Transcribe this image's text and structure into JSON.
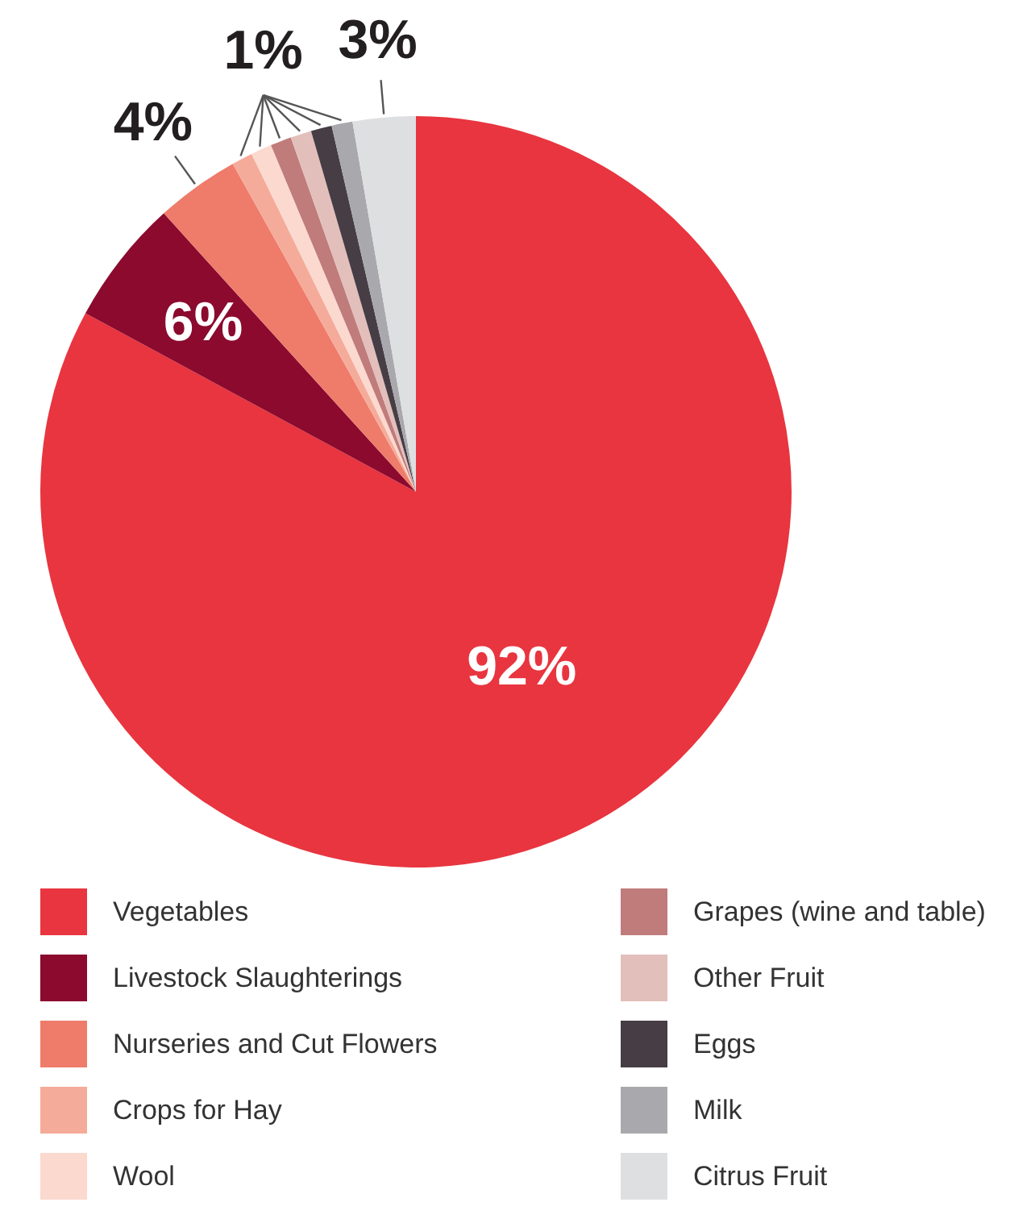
{
  "chart_data": {
    "type": "pie",
    "categories": [
      "Vegetables",
      "Livestock Slaughterings",
      "Nurseries and Cut Flowers",
      "Crops for Hay",
      "Wool",
      "Grapes (wine and table)",
      "Other Fruit",
      "Eggs",
      "Milk",
      "Citrus Fruit"
    ],
    "values": [
      92,
      6,
      4,
      1,
      1,
      1,
      1,
      1,
      1,
      3
    ],
    "colors": [
      "#e8353f",
      "#8b0a2e",
      "#ef7b6a",
      "#f5ab9a",
      "#fbd9cf",
      "#c07b7b",
      "#e3bfbb",
      "#463d45",
      "#a9a9ad",
      "#dedfe1"
    ],
    "value_labels": [
      "92%",
      "6%",
      "4%",
      "1%",
      null,
      null,
      null,
      null,
      null,
      "3%"
    ],
    "legend": "bottom"
  }
}
